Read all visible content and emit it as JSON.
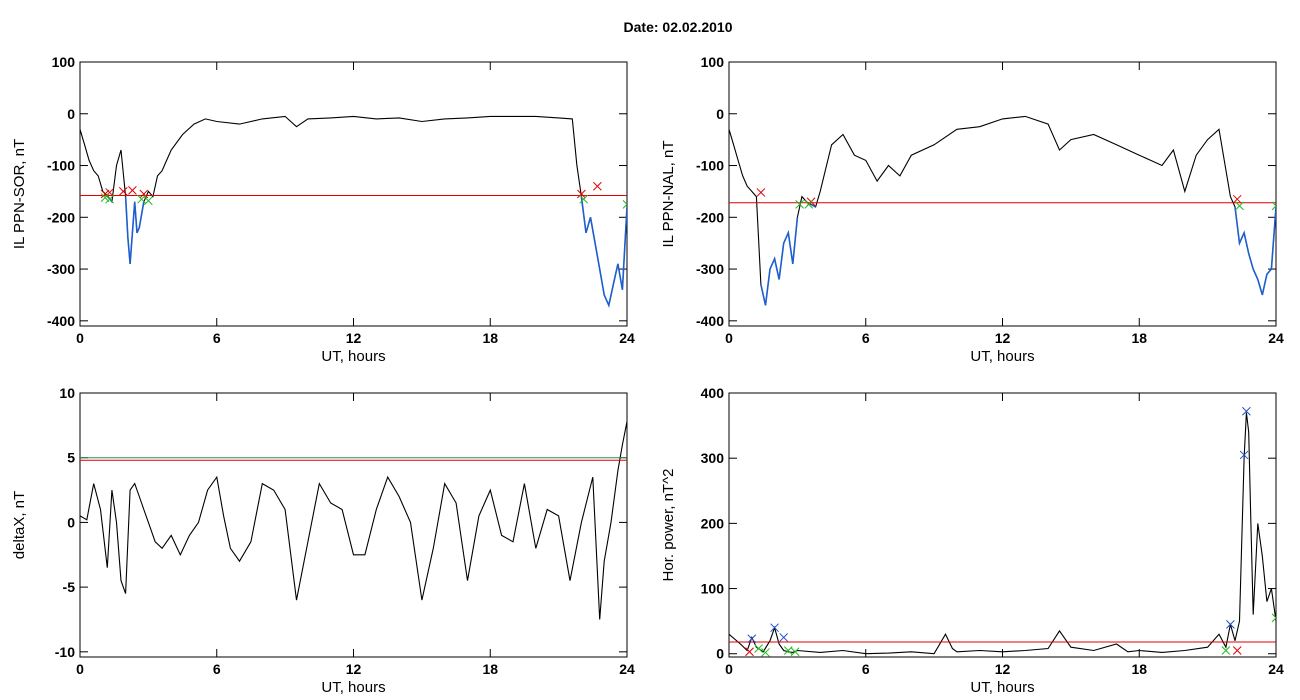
{
  "page": {
    "title": "Date:  02.02.2010"
  },
  "colors": {
    "trace": "#000000",
    "threshold_red": "#e00000",
    "threshold_green": "#2e8b57",
    "threshold_blue": "#1e50c8",
    "excess": "#1e5fd0",
    "marker_red": "#e00000",
    "marker_green": "#22bb22",
    "marker_blue": "#1e50c8"
  },
  "chart_data": [
    {
      "id": "sor",
      "type": "line",
      "xlabel": "UT, hours",
      "ylabel": "IL PPN-SOR, nT",
      "xlim": [
        0,
        24
      ],
      "ylim": [
        -410,
        100
      ],
      "xticks": [
        0,
        6,
        12,
        18,
        24
      ],
      "yticks": [
        100,
        0,
        -100,
        -200,
        -300,
        -400
      ],
      "ytick_labels": [
        "100",
        "0",
        "-100",
        "-200",
        "-300",
        "-400"
      ],
      "thresholds": [
        {
          "y": -158,
          "color": "red"
        }
      ],
      "highlight_below": -158,
      "series": [
        {
          "x": [
            0,
            0.2,
            0.4,
            0.6,
            0.8,
            1.0,
            1.2,
            1.4,
            1.6,
            1.8,
            2.0,
            2.1,
            2.2,
            2.3,
            2.4,
            2.5,
            2.6,
            2.8,
            3.0,
            3.2,
            3.4,
            3.6,
            3.8,
            4.0,
            4.5,
            5.0,
            5.5,
            6.0,
            7,
            8,
            9,
            9.5,
            10,
            11,
            12,
            13,
            14,
            15,
            16,
            17,
            18,
            19,
            20,
            21,
            21.6,
            21.8,
            22.0,
            22.2,
            22.4,
            22.6,
            22.8,
            23.0,
            23.2,
            23.4,
            23.6,
            23.8,
            24.0
          ],
          "y": [
            -30,
            -60,
            -90,
            -110,
            -120,
            -150,
            -158,
            -170,
            -100,
            -70,
            -160,
            -240,
            -290,
            -230,
            -170,
            -230,
            -220,
            -170,
            -150,
            -160,
            -120,
            -110,
            -90,
            -70,
            -40,
            -20,
            -10,
            -15,
            -20,
            -10,
            -5,
            -25,
            -10,
            -8,
            -5,
            -10,
            -8,
            -15,
            -10,
            -8,
            -5,
            -5,
            -5,
            -8,
            -10,
            -100,
            -160,
            -230,
            -200,
            -250,
            -300,
            -350,
            -370,
            -330,
            -290,
            -340,
            -180
          ]
        }
      ],
      "markers": [
        {
          "x": 1.1,
          "y": -155,
          "symbol": "x",
          "color": "red"
        },
        {
          "x": 1.3,
          "y": -152,
          "symbol": "x",
          "color": "red"
        },
        {
          "x": 1.9,
          "y": -150,
          "symbol": "x",
          "color": "red"
        },
        {
          "x": 2.3,
          "y": -148,
          "symbol": "x",
          "color": "red"
        },
        {
          "x": 2.8,
          "y": -155,
          "symbol": "x",
          "color": "red"
        },
        {
          "x": 22.0,
          "y": -155,
          "symbol": "x",
          "color": "red"
        },
        {
          "x": 22.7,
          "y": -140,
          "symbol": "x",
          "color": "red"
        },
        {
          "x": 1.1,
          "y": -162,
          "symbol": "x",
          "color": "green"
        },
        {
          "x": 1.3,
          "y": -165,
          "symbol": "x",
          "color": "green"
        },
        {
          "x": 2.7,
          "y": -165,
          "symbol": "x",
          "color": "green"
        },
        {
          "x": 3.0,
          "y": -168,
          "symbol": "x",
          "color": "green"
        },
        {
          "x": 22.1,
          "y": -165,
          "symbol": "x",
          "color": "green"
        },
        {
          "x": 24.0,
          "y": -175,
          "symbol": "x",
          "color": "green"
        }
      ]
    },
    {
      "id": "nal",
      "type": "line",
      "xlabel": "UT, hours",
      "ylabel": "IL PPN-NAL, nT",
      "xlim": [
        0,
        24
      ],
      "ylim": [
        -410,
        100
      ],
      "xticks": [
        0,
        6,
        12,
        18,
        24
      ],
      "yticks": [
        100,
        0,
        -100,
        -200,
        -300,
        -400
      ],
      "ytick_labels": [
        "100",
        "0",
        "-100",
        "-200",
        "-300",
        "-400"
      ],
      "thresholds": [
        {
          "y": -172,
          "color": "red"
        }
      ],
      "highlight_below": -172,
      "series": [
        {
          "x": [
            0,
            0.2,
            0.4,
            0.6,
            0.8,
            1.0,
            1.2,
            1.4,
            1.6,
            1.8,
            2.0,
            2.2,
            2.4,
            2.6,
            2.8,
            3.0,
            3.2,
            3.4,
            3.6,
            3.8,
            4.0,
            4.5,
            5.0,
            5.5,
            6.0,
            6.5,
            7.0,
            7.5,
            8,
            9,
            10,
            11,
            12,
            13,
            14,
            14.5,
            15,
            16,
            17,
            18,
            19,
            19.5,
            20,
            20.5,
            21,
            21.5,
            22.0,
            22.2,
            22.4,
            22.6,
            22.8,
            23.0,
            23.2,
            23.4,
            23.6,
            23.8,
            24.0
          ],
          "y": [
            -30,
            -60,
            -90,
            -120,
            -140,
            -150,
            -160,
            -330,
            -370,
            -300,
            -280,
            -320,
            -250,
            -230,
            -290,
            -200,
            -160,
            -170,
            -175,
            -180,
            -150,
            -60,
            -40,
            -80,
            -90,
            -130,
            -100,
            -120,
            -80,
            -60,
            -30,
            -25,
            -10,
            -5,
            -20,
            -70,
            -50,
            -40,
            -60,
            -80,
            -100,
            -70,
            -150,
            -80,
            -50,
            -30,
            -160,
            -180,
            -250,
            -230,
            -270,
            -300,
            -320,
            -350,
            -310,
            -300,
            -180
          ]
        }
      ],
      "markers": [
        {
          "x": 1.4,
          "y": -152,
          "symbol": "x",
          "color": "red"
        },
        {
          "x": 3.6,
          "y": -170,
          "symbol": "x",
          "color": "red"
        },
        {
          "x": 22.3,
          "y": -165,
          "symbol": "x",
          "color": "red"
        },
        {
          "x": 3.1,
          "y": -175,
          "symbol": "x",
          "color": "green"
        },
        {
          "x": 3.5,
          "y": -175,
          "symbol": "x",
          "color": "green"
        },
        {
          "x": 22.4,
          "y": -178,
          "symbol": "x",
          "color": "green"
        },
        {
          "x": 24.0,
          "y": -178,
          "symbol": "x",
          "color": "green"
        }
      ]
    },
    {
      "id": "deltax",
      "type": "line",
      "xlabel": "UT, hours",
      "ylabel": "deltaX, nT",
      "xlim": [
        0,
        24
      ],
      "ylim": [
        -10.4,
        10
      ],
      "xticks": [
        0,
        6,
        12,
        18,
        24
      ],
      "yticks": [
        10,
        5,
        0,
        -5,
        -10
      ],
      "ytick_labels": [
        "10",
        "5",
        "0",
        "-5",
        "-10"
      ],
      "thresholds": [
        {
          "y": 5.0,
          "color": "green"
        },
        {
          "y": 4.8,
          "color": "red"
        }
      ],
      "series": [
        {
          "x": [
            0,
            0.3,
            0.6,
            0.9,
            1.2,
            1.4,
            1.6,
            1.8,
            2.0,
            2.2,
            2.4,
            2.6,
            2.8,
            3.0,
            3.3,
            3.6,
            4.0,
            4.4,
            4.8,
            5.2,
            5.6,
            6.0,
            6.3,
            6.6,
            7.0,
            7.5,
            8.0,
            8.5,
            9.0,
            9.5,
            10.0,
            10.5,
            11.0,
            11.5,
            12.0,
            12.5,
            13.0,
            13.5,
            14.0,
            14.5,
            15.0,
            15.5,
            16.0,
            16.5,
            17.0,
            17.5,
            18.0,
            18.5,
            19.0,
            19.5,
            20.0,
            20.5,
            21.0,
            21.5,
            22.0,
            22.5,
            22.8,
            23.0,
            23.3,
            23.6,
            23.8,
            24.0
          ],
          "y": [
            0.5,
            0.2,
            3.0,
            1.0,
            -3.5,
            2.5,
            0.0,
            -4.5,
            -5.5,
            2.5,
            3.0,
            2.0,
            1.0,
            0.0,
            -1.5,
            -2.0,
            -1.0,
            -2.5,
            -1.0,
            0.0,
            2.5,
            3.5,
            0.5,
            -2.0,
            -3.0,
            -1.5,
            3.0,
            2.5,
            1.0,
            -6.0,
            -1.5,
            3.0,
            1.5,
            1.0,
            -2.5,
            -2.5,
            1.0,
            3.5,
            2.0,
            0.0,
            -6.0,
            -2.0,
            3.0,
            1.5,
            -4.5,
            0.5,
            2.5,
            -1.0,
            -1.5,
            3.0,
            -2.0,
            1.0,
            0.5,
            -4.5,
            0.0,
            3.5,
            -7.5,
            -3.0,
            0.0,
            4.0,
            6.0,
            7.8
          ]
        }
      ]
    },
    {
      "id": "power",
      "type": "line",
      "xlabel": "UT, hours",
      "ylabel": "Hor. power, nT^2",
      "xlim": [
        0,
        24
      ],
      "ylim": [
        -5,
        400
      ],
      "xticks": [
        0,
        6,
        12,
        18,
        24
      ],
      "yticks": [
        400,
        300,
        200,
        100,
        0
      ],
      "ytick_labels": [
        "400",
        "300",
        "200",
        "100",
        "0"
      ],
      "thresholds": [
        {
          "y": 18,
          "color": "red"
        }
      ],
      "series": [
        {
          "x": [
            0,
            0.5,
            0.8,
            1.0,
            1.2,
            1.5,
            1.8,
            2.0,
            2.2,
            2.4,
            2.6,
            2.8,
            3.0,
            4,
            5,
            6,
            7,
            8,
            9,
            9.5,
            9.8,
            10,
            11,
            12,
            13,
            14,
            14.5,
            15,
            16,
            17,
            17.5,
            18,
            19,
            20,
            21,
            21.5,
            21.8,
            22.0,
            22.2,
            22.4,
            22.6,
            22.7,
            22.8,
            22.9,
            23.0,
            23.2,
            23.4,
            23.6,
            23.8,
            24.0
          ],
          "y": [
            30,
            15,
            5,
            25,
            10,
            3,
            20,
            40,
            15,
            5,
            3,
            2,
            5,
            2,
            5,
            0,
            1,
            3,
            0,
            30,
            8,
            3,
            5,
            3,
            5,
            8,
            35,
            10,
            5,
            15,
            3,
            5,
            2,
            5,
            10,
            30,
            10,
            45,
            20,
            50,
            300,
            370,
            340,
            200,
            60,
            200,
            150,
            80,
            100,
            50
          ]
        }
      ],
      "markers": [
        {
          "x": 1.0,
          "y": 23,
          "symbol": "x",
          "color": "blue"
        },
        {
          "x": 2.0,
          "y": 40,
          "symbol": "x",
          "color": "blue"
        },
        {
          "x": 2.4,
          "y": 25,
          "symbol": "x",
          "color": "blue"
        },
        {
          "x": 22.0,
          "y": 45,
          "symbol": "x",
          "color": "blue"
        },
        {
          "x": 22.6,
          "y": 305,
          "symbol": "x",
          "color": "blue"
        },
        {
          "x": 22.7,
          "y": 372,
          "symbol": "x",
          "color": "blue"
        },
        {
          "x": 1.3,
          "y": 8,
          "symbol": "x",
          "color": "green"
        },
        {
          "x": 1.6,
          "y": 2,
          "symbol": "x",
          "color": "green"
        },
        {
          "x": 2.6,
          "y": 5,
          "symbol": "x",
          "color": "green"
        },
        {
          "x": 2.9,
          "y": 3,
          "symbol": "x",
          "color": "green"
        },
        {
          "x": 21.8,
          "y": 5,
          "symbol": "x",
          "color": "green"
        },
        {
          "x": 24.0,
          "y": 55,
          "symbol": "x",
          "color": "green"
        },
        {
          "x": 0.9,
          "y": 3,
          "symbol": "x",
          "color": "red"
        },
        {
          "x": 22.3,
          "y": 5,
          "symbol": "x",
          "color": "red"
        }
      ]
    }
  ]
}
